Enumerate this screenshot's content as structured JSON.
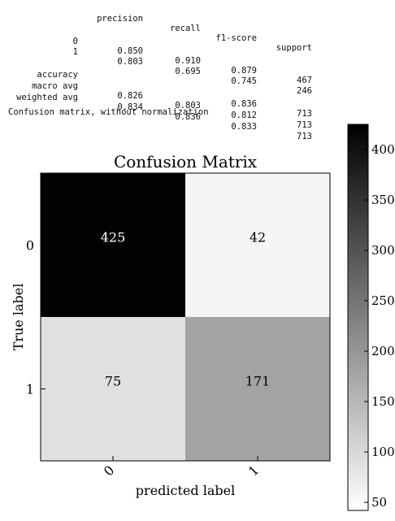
{
  "report": {
    "headers": [
      "precision",
      "recall",
      "f1-score",
      "support"
    ],
    "rows": [
      {
        "label": "0",
        "values": [
          "0.850",
          "0.910",
          "0.879",
          "467"
        ]
      },
      {
        "label": "1",
        "values": [
          "0.803",
          "0.695",
          "0.745",
          "246"
        ]
      },
      {
        "label": "accuracy",
        "values": [
          "",
          "",
          "0.836",
          "713"
        ]
      },
      {
        "label": "macro avg",
        "values": [
          "0.826",
          "0.803",
          "0.812",
          "713"
        ]
      },
      {
        "label": "weighted avg",
        "values": [
          "0.834",
          "0.836",
          "0.833",
          "713"
        ]
      }
    ]
  },
  "caption": "Confusion matrix, without normalization",
  "chart_data": {
    "type": "heatmap",
    "title": "Confusion Matrix",
    "xlabel": "predicted label",
    "ylabel": "True label",
    "x_ticks": [
      "0",
      "1"
    ],
    "y_ticks": [
      "0",
      "1"
    ],
    "matrix": [
      [
        425,
        42
      ],
      [
        75,
        171
      ]
    ],
    "colormap": "greys",
    "color_range": [
      42,
      425
    ],
    "colorbar_ticks": [
      50,
      100,
      150,
      200,
      250,
      300,
      350,
      400
    ]
  }
}
